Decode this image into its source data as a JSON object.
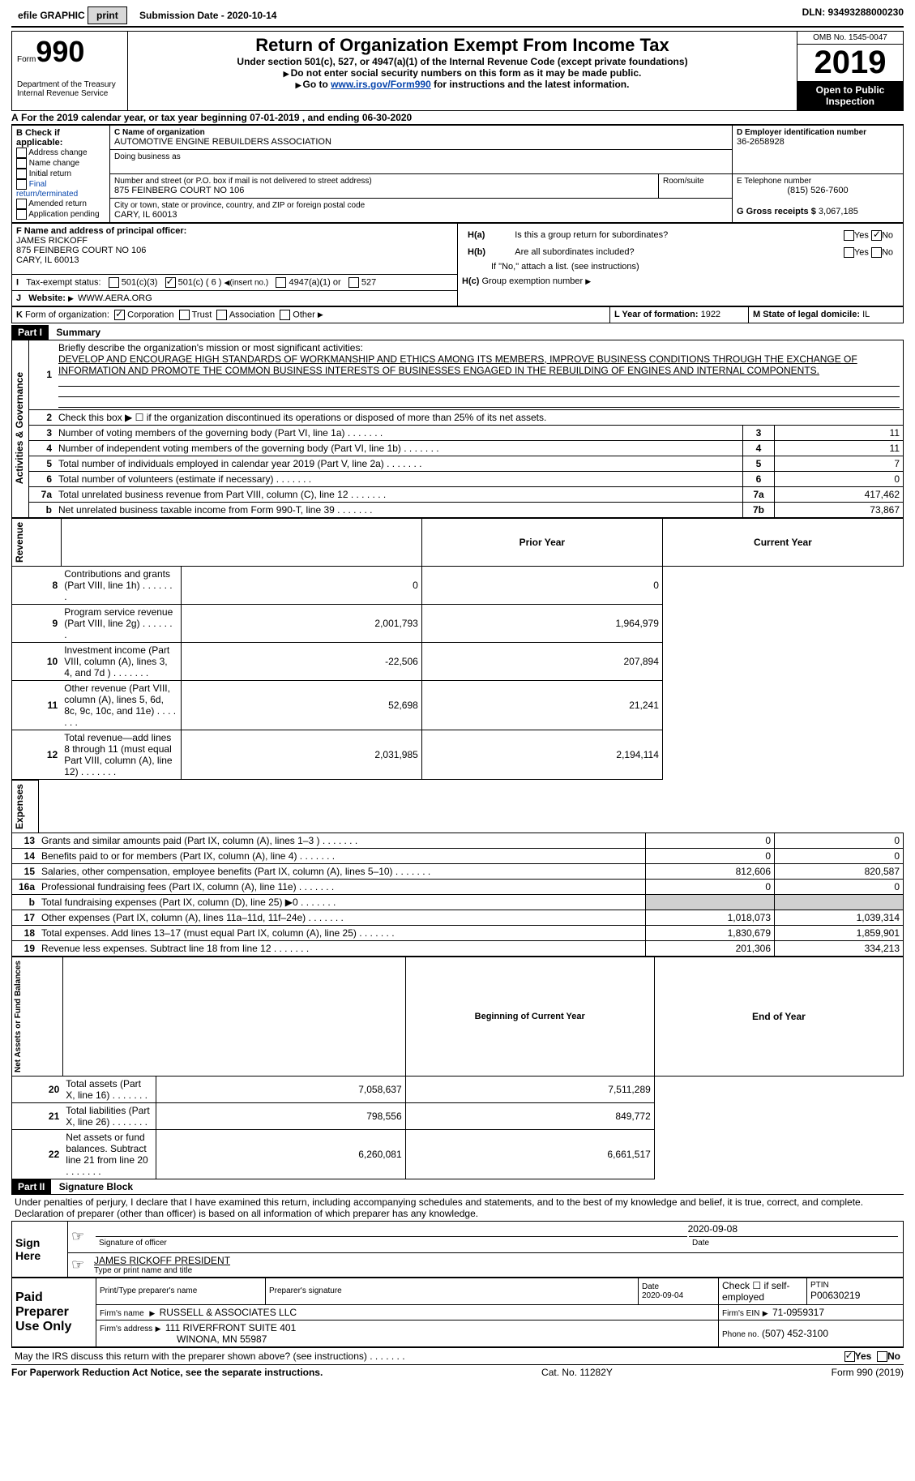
{
  "topbar": {
    "efile_label": "efile GRAPHIC",
    "print_btn": "print",
    "submission_label": "Submission Date - 2020-10-14",
    "dln": "DLN: 93493288000230"
  },
  "header": {
    "form_prefix": "Form",
    "form_no": "990",
    "dept": "Department of the Treasury\nInternal Revenue Service",
    "title": "Return of Organization Exempt From Income Tax",
    "subtitle": "Under section 501(c), 527, or 4947(a)(1) of the Internal Revenue Code (except private foundations)",
    "note1": "Do not enter social security numbers on this form as it may be made public.",
    "note2_pre": "Go to ",
    "note2_link": "www.irs.gov/Form990",
    "note2_post": " for instructions and the latest information.",
    "omb": "OMB No. 1545-0047",
    "year": "2019",
    "inspection": "Open to Public Inspection"
  },
  "A": {
    "line": "For the 2019 calendar year, or tax year beginning 07-01-2019   , and ending 06-30-2020"
  },
  "B": {
    "label": "B Check if applicable:",
    "opts": [
      "Address change",
      "Name change",
      "Initial return",
      "Final return/terminated",
      "Amended return",
      "Application pending"
    ]
  },
  "C": {
    "name_lbl": "C Name of organization",
    "name": "AUTOMOTIVE ENGINE REBUILDERS ASSOCIATION",
    "dba_lbl": "Doing business as",
    "dba": "",
    "addr_lbl": "Number and street (or P.O. box if mail is not delivered to street address)",
    "room_lbl": "Room/suite",
    "addr": "875 FEINBERG COURT NO 106",
    "city_lbl": "City or town, state or province, country, and ZIP or foreign postal code",
    "city": "CARY, IL  60013"
  },
  "D": {
    "label": "D Employer identification number",
    "ein": "36-2658928"
  },
  "E": {
    "label": "E Telephone number",
    "phone": "(815) 526-7600"
  },
  "G": {
    "label": "G Gross receipts $",
    "val": "3,067,185"
  },
  "F": {
    "label": "F  Name and address of principal officer:",
    "name": "JAMES RICKOFF",
    "addr": "875 FEINBERG COURT NO 106",
    "city": "CARY, IL  60013"
  },
  "H": {
    "a": "Is this a group return for subordinates?",
    "a_yes": "Yes",
    "a_no": "No",
    "b": "Are all subordinates included?",
    "b_yes": "Yes",
    "b_no": "No",
    "note": "If \"No,\" attach a list. (see instructions)",
    "c": "Group exemption number"
  },
  "I": {
    "label": "Tax-exempt status:",
    "o1": "501(c)(3)",
    "o2": "501(c) ( 6 )",
    "o2_tail": "(insert no.)",
    "o3": "4947(a)(1) or",
    "o4": "527"
  },
  "J": {
    "label": "Website:",
    "val": "WWW.AERA.ORG"
  },
  "K": {
    "label": "Form of organization:",
    "o1": "Corporation",
    "o2": "Trust",
    "o3": "Association",
    "o4": "Other"
  },
  "L": {
    "label": "L Year of formation:",
    "val": "1922"
  },
  "M": {
    "label": "M State of legal domicile:",
    "val": "IL"
  },
  "part1": {
    "hdr": "Part I",
    "title": "Summary",
    "l1_lbl": "Briefly describe the organization's mission or most significant activities:",
    "l1_txt": "DEVELOP AND ENCOURAGE HIGH STANDARDS OF WORKMANSHIP AND ETHICS AMONG ITS MEMBERS, IMPROVE BUSINESS CONDITIONS THROUGH THE EXCHANGE OF INFORMATION AND PROMOTE THE COMMON BUSINESS INTERESTS OF BUSINESSES ENGAGED IN THE REBUILDING OF ENGINES AND INTERNAL COMPONENTS.",
    "l2": "Check this box ▶ ☐  if the organization discontinued its operations or disposed of more than 25% of its net assets.",
    "rows_gov": [
      {
        "n": "3",
        "t": "Number of voting members of the governing body (Part VI, line 1a)",
        "k": "3",
        "v": "11"
      },
      {
        "n": "4",
        "t": "Number of independent voting members of the governing body (Part VI, line 1b)",
        "k": "4",
        "v": "11"
      },
      {
        "n": "5",
        "t": "Total number of individuals employed in calendar year 2019 (Part V, line 2a)",
        "k": "5",
        "v": "7"
      },
      {
        "n": "6",
        "t": "Total number of volunteers (estimate if necessary)",
        "k": "6",
        "v": "0"
      },
      {
        "n": "7a",
        "t": "Total unrelated business revenue from Part VIII, column (C), line 12",
        "k": "7a",
        "v": "417,462"
      },
      {
        "n": "b",
        "t": "Net unrelated business taxable income from Form 990-T, line 39",
        "k": "7b",
        "v": "73,867"
      }
    ],
    "col_prior": "Prior Year",
    "col_curr": "Current Year",
    "revenue": [
      {
        "n": "8",
        "t": "Contributions and grants (Part VIII, line 1h)",
        "p": "0",
        "c": "0"
      },
      {
        "n": "9",
        "t": "Program service revenue (Part VIII, line 2g)",
        "p": "2,001,793",
        "c": "1,964,979"
      },
      {
        "n": "10",
        "t": "Investment income (Part VIII, column (A), lines 3, 4, and 7d )",
        "p": "-22,506",
        "c": "207,894"
      },
      {
        "n": "11",
        "t": "Other revenue (Part VIII, column (A), lines 5, 6d, 8c, 9c, 10c, and 11e)",
        "p": "52,698",
        "c": "21,241"
      },
      {
        "n": "12",
        "t": "Total revenue—add lines 8 through 11 (must equal Part VIII, column (A), line 12)",
        "p": "2,031,985",
        "c": "2,194,114"
      }
    ],
    "expenses": [
      {
        "n": "13",
        "t": "Grants and similar amounts paid (Part IX, column (A), lines 1–3 )",
        "p": "0",
        "c": "0"
      },
      {
        "n": "14",
        "t": "Benefits paid to or for members (Part IX, column (A), line 4)",
        "p": "0",
        "c": "0"
      },
      {
        "n": "15",
        "t": "Salaries, other compensation, employee benefits (Part IX, column (A), lines 5–10)",
        "p": "812,606",
        "c": "820,587"
      },
      {
        "n": "16a",
        "t": "Professional fundraising fees (Part IX, column (A), line 11e)",
        "p": "0",
        "c": "0"
      },
      {
        "n": "b",
        "t": "Total fundraising expenses (Part IX, column (D), line 25) ▶0",
        "p": "",
        "c": "",
        "shade": true
      },
      {
        "n": "17",
        "t": "Other expenses (Part IX, column (A), lines 11a–11d, 11f–24e)",
        "p": "1,018,073",
        "c": "1,039,314"
      },
      {
        "n": "18",
        "t": "Total expenses. Add lines 13–17 (must equal Part IX, column (A), line 25)",
        "p": "1,830,679",
        "c": "1,859,901"
      },
      {
        "n": "19",
        "t": "Revenue less expenses. Subtract line 18 from line 12",
        "p": "201,306",
        "c": "334,213"
      }
    ],
    "col_beg": "Beginning of Current Year",
    "col_end": "End of Year",
    "net": [
      {
        "n": "20",
        "t": "Total assets (Part X, line 16)",
        "p": "7,058,637",
        "c": "7,511,289"
      },
      {
        "n": "21",
        "t": "Total liabilities (Part X, line 26)",
        "p": "798,556",
        "c": "849,772"
      },
      {
        "n": "22",
        "t": "Net assets or fund balances. Subtract line 21 from line 20",
        "p": "6,260,081",
        "c": "6,661,517"
      }
    ],
    "v_gov": "Activities & Governance",
    "v_rev": "Revenue",
    "v_exp": "Expenses",
    "v_net": "Net Assets or Fund Balances"
  },
  "part2": {
    "hdr": "Part II",
    "title": "Signature Block",
    "decl": "Under penalties of perjury, I declare that I have examined this return, including accompanying schedules and statements, and to the best of my knowledge and belief, it is true, correct, and complete. Declaration of preparer (other than officer) is based on all information of which preparer has any knowledge.",
    "sign_here": "Sign Here",
    "sig_lbl": "Signature of officer",
    "date_lbl": "Date",
    "sig_date": "2020-09-08",
    "name_lbl": "Type or print name and title",
    "name": "JAMES RICKOFF  PRESIDENT",
    "paid": "Paid Preparer Use Only",
    "p_name_lbl": "Print/Type preparer's name",
    "p_sig_lbl": "Preparer's signature",
    "p_date_lbl": "Date",
    "p_date": "2020-09-04",
    "p_self": "Check ☐ if self-employed",
    "ptin_lbl": "PTIN",
    "ptin": "P00630219",
    "firm_lbl": "Firm's name",
    "firm": "RUSSELL & ASSOCIATES LLC",
    "firm_ein_lbl": "Firm's EIN",
    "firm_ein": "71-0959317",
    "firm_addr_lbl": "Firm's address",
    "firm_addr": "111 RIVERFRONT SUITE 401",
    "firm_city": "WINONA, MN  55987",
    "firm_ph_lbl": "Phone no.",
    "firm_ph": "(507) 452-3100",
    "discuss": "May the IRS discuss this return with the preparer shown above? (see instructions)",
    "yes": "Yes",
    "no": "No"
  },
  "footer": {
    "l": "For Paperwork Reduction Act Notice, see the separate instructions.",
    "c": "Cat. No. 11282Y",
    "r": "Form 990 (2019)"
  }
}
